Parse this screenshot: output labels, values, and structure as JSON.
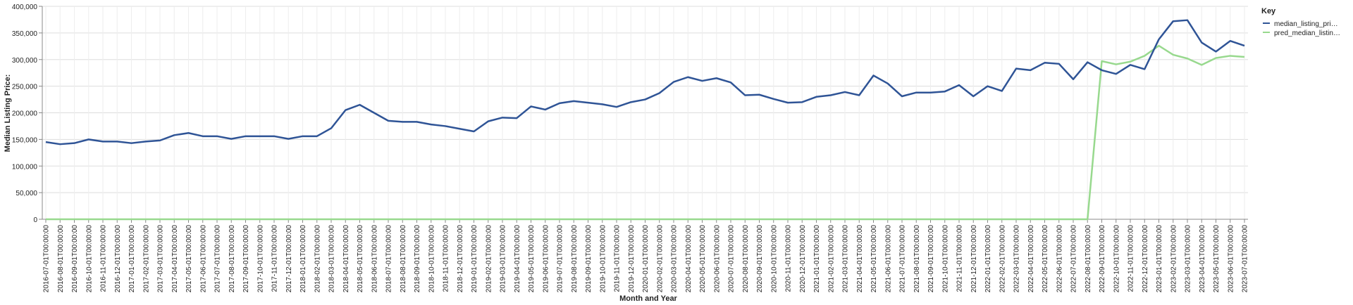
{
  "chart_data": {
    "type": "line",
    "xlabel": "Month and Year",
    "ylabel": "Median Listing Price:",
    "ylim": [
      0,
      400000
    ],
    "y_ticks": [
      0,
      50000,
      100000,
      150000,
      200000,
      250000,
      300000,
      350000,
      400000
    ],
    "y_tick_labels": [
      "0",
      "50,000",
      "100,000",
      "150,000",
      "200,000",
      "250,000",
      "300,000",
      "350,000",
      "400,000"
    ],
    "grid": true,
    "legend": {
      "title": "Key",
      "placement": "right",
      "entries": [
        "median_listing_pri…",
        "pred_median_listin…"
      ]
    },
    "x": [
      "2016-07-01T00:00:00",
      "2016-08-01T00:00:00",
      "2016-09-01T00:00:00",
      "2016-10-01T00:00:00",
      "2016-11-01T00:00:00",
      "2016-12-01T00:00:00",
      "2017-01-01T00:00:00",
      "2017-02-01T00:00:00",
      "2017-03-01T00:00:00",
      "2017-04-01T00:00:00",
      "2017-05-01T00:00:00",
      "2017-06-01T00:00:00",
      "2017-07-01T00:00:00",
      "2017-08-01T00:00:00",
      "2017-09-01T00:00:00",
      "2017-10-01T00:00:00",
      "2017-11-01T00:00:00",
      "2017-12-01T00:00:00",
      "2018-01-01T00:00:00",
      "2018-02-01T00:00:00",
      "2018-03-01T00:00:00",
      "2018-04-01T00:00:00",
      "2018-05-01T00:00:00",
      "2018-06-01T00:00:00",
      "2018-07-01T00:00:00",
      "2018-08-01T00:00:00",
      "2018-09-01T00:00:00",
      "2018-10-01T00:00:00",
      "2018-11-01T00:00:00",
      "2018-12-01T00:00:00",
      "2019-01-01T00:00:00",
      "2019-02-01T00:00:00",
      "2019-03-01T00:00:00",
      "2019-04-01T00:00:00",
      "2019-05-01T00:00:00",
      "2019-06-01T00:00:00",
      "2019-07-01T00:00:00",
      "2019-08-01T00:00:00",
      "2019-09-01T00:00:00",
      "2019-10-01T00:00:00",
      "2019-11-01T00:00:00",
      "2019-12-01T00:00:00",
      "2020-01-01T00:00:00",
      "2020-02-01T00:00:00",
      "2020-03-01T00:00:00",
      "2020-04-01T00:00:00",
      "2020-05-01T00:00:00",
      "2020-06-01T00:00:00",
      "2020-07-01T00:00:00",
      "2020-08-01T00:00:00",
      "2020-09-01T00:00:00",
      "2020-10-01T00:00:00",
      "2020-11-01T00:00:00",
      "2020-12-01T00:00:00",
      "2021-01-01T00:00:00",
      "2021-02-01T00:00:00",
      "2021-03-01T00:00:00",
      "2021-04-01T00:00:00",
      "2021-05-01T00:00:00",
      "2021-06-01T00:00:00",
      "2021-07-01T00:00:00",
      "2021-08-01T00:00:00",
      "2021-09-01T00:00:00",
      "2021-10-01T00:00:00",
      "2021-11-01T00:00:00",
      "2021-12-01T00:00:00",
      "2022-01-01T00:00:00",
      "2022-02-01T00:00:00",
      "2022-03-01T00:00:00",
      "2022-04-01T00:00:00",
      "2022-05-01T00:00:00",
      "2022-06-01T00:00:00",
      "2022-07-01T00:00:00",
      "2022-08-01T00:00:00",
      "2022-09-01T00:00:00",
      "2022-10-01T00:00:00",
      "2022-11-01T00:00:00",
      "2022-12-01T00:00:00",
      "2023-01-01T00:00:00",
      "2023-02-01T00:00:00",
      "2023-03-01T00:00:00",
      "2023-04-01T00:00:00",
      "2023-05-01T00:00:00",
      "2023-06-01T00:00:00",
      "2023-07-01T00:00:00"
    ],
    "series": [
      {
        "name": "median_listing_pri…",
        "color": "#2f5496",
        "values": [
          145000,
          141000,
          143000,
          150000,
          146000,
          146000,
          143000,
          146000,
          148000,
          158000,
          162000,
          156000,
          156000,
          151000,
          156000,
          156000,
          156000,
          151000,
          156000,
          156000,
          171000,
          205000,
          215000,
          200000,
          185000,
          183000,
          183000,
          178000,
          175000,
          170000,
          165000,
          184000,
          191000,
          190000,
          212000,
          206000,
          218000,
          222000,
          219000,
          216000,
          211000,
          220000,
          225000,
          237000,
          258000,
          267000,
          260000,
          265000,
          257000,
          233000,
          234000,
          226000,
          219000,
          220000,
          230000,
          233000,
          239000,
          233000,
          270000,
          255000,
          231000,
          238000,
          238000,
          240000,
          252000,
          231000,
          250000,
          241000,
          283000,
          280000,
          294000,
          292000,
          263000,
          295000,
          280000,
          273000,
          290000,
          282000,
          338000,
          372000,
          374000,
          332000,
          315000,
          335000,
          326000
        ]
      },
      {
        "name": "pred_median_listin…",
        "color": "#98d98e",
        "values": [
          0,
          0,
          0,
          0,
          0,
          0,
          0,
          0,
          0,
          0,
          0,
          0,
          0,
          0,
          0,
          0,
          0,
          0,
          0,
          0,
          0,
          0,
          0,
          0,
          0,
          0,
          0,
          0,
          0,
          0,
          0,
          0,
          0,
          0,
          0,
          0,
          0,
          0,
          0,
          0,
          0,
          0,
          0,
          0,
          0,
          0,
          0,
          0,
          0,
          0,
          0,
          0,
          0,
          0,
          0,
          0,
          0,
          0,
          0,
          0,
          0,
          0,
          0,
          0,
          0,
          0,
          0,
          0,
          0,
          0,
          0,
          0,
          0,
          0,
          297000,
          291000,
          296000,
          307000,
          326000,
          309000,
          302000,
          290000,
          303000,
          307000,
          305000
        ]
      }
    ]
  }
}
